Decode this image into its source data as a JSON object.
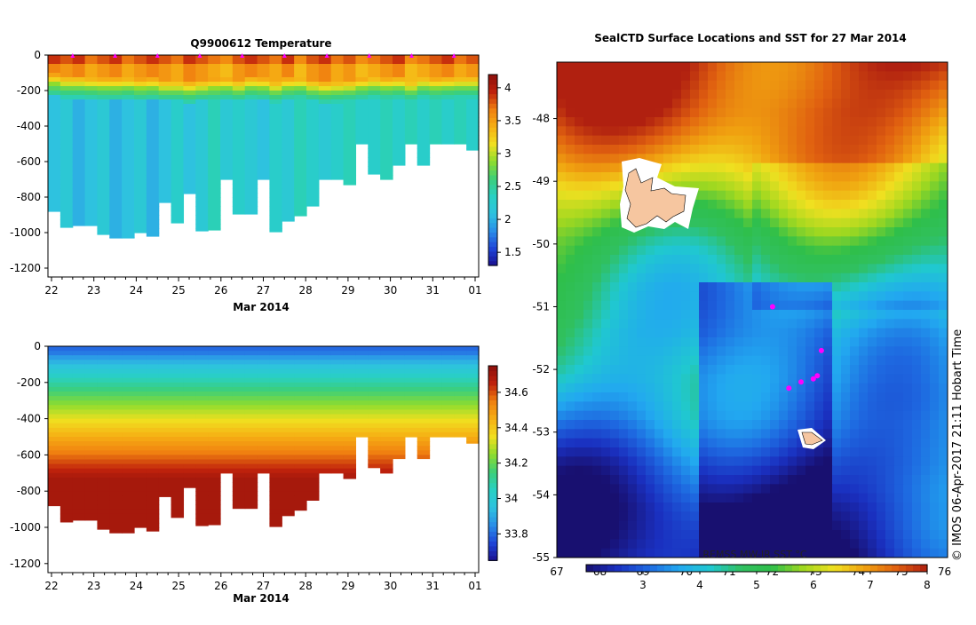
{
  "colors": {
    "temperature_scale": [
      "#1a1090",
      "#1f45d8",
      "#2a8ee8",
      "#2ec2e0",
      "#28d0c4",
      "#3ccf7a",
      "#8edc2e",
      "#f0e020",
      "#f6b014",
      "#f08010",
      "#c0220c",
      "#8c100c"
    ],
    "sst_scale": [
      "#181070",
      "#1a30c0",
      "#1e68e0",
      "#22a8f0",
      "#20c8d0",
      "#30c060",
      "#2fbf4a",
      "#a0d820",
      "#f0e020",
      "#f0a010",
      "#e06010",
      "#b02010"
    ],
    "island": "#f6c6a0",
    "marker": "#ff00ff"
  },
  "chart_data": [
    {
      "id": "temperature",
      "type": "heatmap",
      "title": "Q9900612  Temperature",
      "xlabel": "Mar 2014",
      "x_ticks": [
        "22",
        "23",
        "24",
        "25",
        "26",
        "27",
        "28",
        "29",
        "30",
        "31",
        "01"
      ],
      "y_ticks": [
        "0",
        "-200",
        "-400",
        "-600",
        "-800",
        "-1000",
        "-1200"
      ],
      "ylim": [
        -1250,
        0
      ],
      "colorbar_ticks": [
        "4",
        "3.5",
        "3",
        "2.5",
        "2",
        "1.5"
      ],
      "colorbar_range": [
        1.3,
        4.2
      ],
      "profile_bottoms": [
        -880,
        -970,
        -960,
        -960,
        -1010,
        -1030,
        -1030,
        -1000,
        -1020,
        -830,
        -945,
        -780,
        -990,
        -985,
        -700,
        -895,
        -895,
        -700,
        -995,
        -935,
        -905,
        -850,
        -700,
        -700,
        -730,
        -500,
        -670,
        -700,
        -620,
        -500,
        -620,
        -500,
        -500,
        -500,
        -535
      ],
      "mixed_layer_depth": [
        -110,
        -120,
        -120,
        -125,
        -130,
        -130,
        -125,
        -135,
        -130,
        -140,
        -140,
        -150,
        -140,
        -135,
        -130,
        -140,
        -125,
        -130,
        -145,
        -130,
        -125,
        -140,
        -150,
        -145,
        -140,
        -130,
        -120,
        -130,
        -125,
        -140,
        -120,
        -130,
        -125,
        -120,
        -120
      ],
      "surface_temperature": [
        3.9,
        3.8,
        3.9,
        3.7,
        3.8,
        3.9,
        3.7,
        3.8,
        3.9,
        3.8,
        3.7,
        3.9,
        3.8,
        3.7,
        3.6,
        3.8,
        3.9,
        3.8,
        3.7,
        3.9,
        3.6,
        3.8,
        3.9,
        3.7,
        3.8,
        3.6,
        3.7,
        3.8,
        3.9,
        3.6,
        3.7,
        3.8,
        3.9,
        3.7,
        3.8
      ],
      "deep_temperature": [
        2.1,
        2.2,
        2.0,
        2.1,
        2.2,
        2.0,
        2.1,
        2.2,
        2.0,
        2.1,
        2.3,
        2.1,
        2.2,
        2.4,
        2.2,
        2.3,
        2.2,
        2.1,
        2.3,
        2.2,
        2.4,
        2.3,
        2.2,
        2.3,
        2.4,
        2.3,
        2.3,
        2.4,
        2.3,
        2.4,
        2.3,
        2.4,
        2.3,
        2.4,
        2.3
      ]
    },
    {
      "id": "salinity",
      "type": "heatmap",
      "xlabel": "Mar 2014",
      "x_ticks": [
        "22",
        "23",
        "24",
        "25",
        "26",
        "27",
        "28",
        "29",
        "30",
        "31",
        "01"
      ],
      "y_ticks": [
        "0",
        "-200",
        "-400",
        "-600",
        "-800",
        "-1000",
        "-1200"
      ],
      "ylim": [
        -1250,
        0
      ],
      "colorbar_ticks": [
        "34.6",
        "34.4",
        "34.2",
        "34",
        "33.8"
      ],
      "colorbar_range": [
        33.65,
        34.75
      ],
      "profile_bottoms": [
        -880,
        -970,
        -960,
        -960,
        -1010,
        -1030,
        -1030,
        -1000,
        -1020,
        -830,
        -945,
        -780,
        -990,
        -985,
        -700,
        -895,
        -895,
        -700,
        -995,
        -935,
        -905,
        -850,
        -700,
        -700,
        -730,
        -500,
        -670,
        -700,
        -620,
        -500,
        -620,
        -500,
        -500,
        -500,
        -535
      ],
      "surface_salinity": 33.8,
      "deep_salinity": 34.7
    },
    {
      "id": "sst_map",
      "type": "heatmap",
      "title": "SealCTD Surface Locations and SST for 27 Mar 2014",
      "y_ticks": [
        "-48",
        "-49",
        "-50",
        "-51",
        "-52",
        "-53",
        "-54",
        "-55"
      ],
      "ylim": [
        -55,
        -47.1
      ],
      "x_ticks_bottom": [
        "67",
        "68",
        "69",
        "70",
        "71",
        "72",
        "73",
        "74",
        "75",
        "76"
      ],
      "colorbar_ticks": [
        "3",
        "4",
        "5",
        "6",
        "7",
        "8"
      ],
      "colorbar_range": [
        2,
        8
      ],
      "colorbar_label": "REMSS MW-IR SST °C",
      "latitude_band_sst": [
        7.8,
        7.4,
        6.8,
        6.0,
        5.2,
        4.6,
        4.2,
        4.0,
        3.6,
        3.0,
        2.6,
        2.4
      ],
      "seal_positions": [
        {
          "lon": 72.3,
          "lat": -51.0
        },
        {
          "lon": 73.5,
          "lat": -51.7
        },
        {
          "lon": 73.4,
          "lat": -52.1
        },
        {
          "lon": 73.3,
          "lat": -52.15
        },
        {
          "lon": 72.7,
          "lat": -52.3
        },
        {
          "lon": 73.0,
          "lat": -52.2
        }
      ]
    }
  ],
  "credit": "© IMOS 06-Apr-2017 21:11 Hobart Time"
}
